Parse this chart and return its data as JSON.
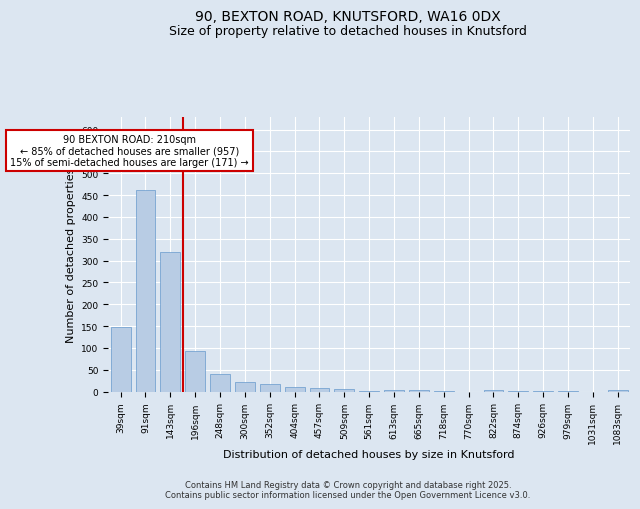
{
  "title_line1": "90, BEXTON ROAD, KNUTSFORD, WA16 0DX",
  "title_line2": "Size of property relative to detached houses in Knutsford",
  "xlabel": "Distribution of detached houses by size in Knutsford",
  "ylabel": "Number of detached properties",
  "categories": [
    "39sqm",
    "91sqm",
    "143sqm",
    "196sqm",
    "248sqm",
    "300sqm",
    "352sqm",
    "404sqm",
    "457sqm",
    "509sqm",
    "561sqm",
    "613sqm",
    "665sqm",
    "718sqm",
    "770sqm",
    "822sqm",
    "874sqm",
    "926sqm",
    "979sqm",
    "1031sqm",
    "1083sqm"
  ],
  "values": [
    148,
    462,
    320,
    93,
    40,
    22,
    18,
    10,
    7,
    6,
    2,
    3,
    4,
    1,
    0,
    4,
    1,
    1,
    1,
    0,
    3
  ],
  "bar_color": "#b8cce4",
  "bar_edgecolor": "#6699cc",
  "vline_x_index": 2.5,
  "vline_color": "#cc0000",
  "annotation_box_text": "90 BEXTON ROAD: 210sqm\n← 85% of detached houses are smaller (957)\n15% of semi-detached houses are larger (171) →",
  "box_edgecolor": "#cc0000",
  "ylim": [
    0,
    630
  ],
  "yticks": [
    0,
    50,
    100,
    150,
    200,
    250,
    300,
    350,
    400,
    450,
    500,
    550,
    600
  ],
  "bg_color": "#dce6f1",
  "plot_bg_color": "#dce6f1",
  "footer_line1": "Contains HM Land Registry data © Crown copyright and database right 2025.",
  "footer_line2": "Contains public sector information licensed under the Open Government Licence v3.0.",
  "title_fontsize": 10,
  "subtitle_fontsize": 9,
  "tick_fontsize": 6.5,
  "label_fontsize": 8,
  "footer_fontsize": 6,
  "ann_fontsize": 7
}
